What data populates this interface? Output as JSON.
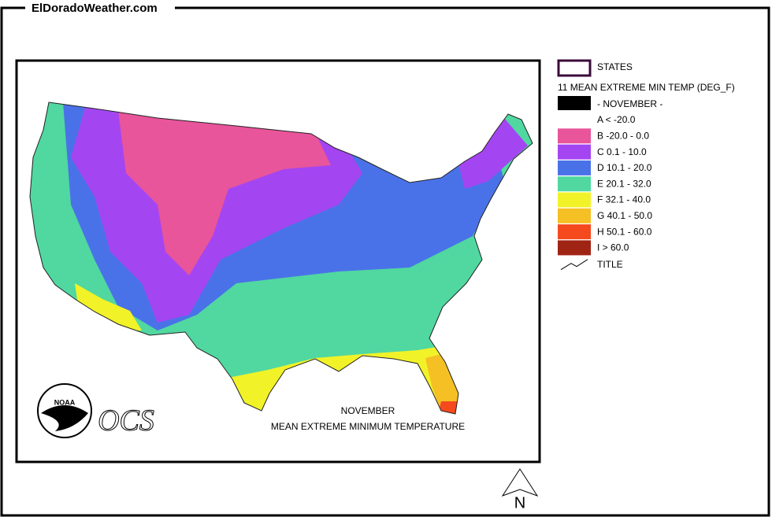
{
  "header": {
    "title": "ElDoradoWeather.com"
  },
  "legend": {
    "states": "STATES",
    "variable": "11 MEAN EXTREME MIN TEMP (DEG_F)",
    "month": "- NOVEMBER -",
    "classes": [
      {
        "label": "A < -20.0",
        "color": "#ffffff"
      },
      {
        "label": "B -20.0 - 0.0",
        "color": "#e8559a"
      },
      {
        "label": "C 0.1 - 10.0",
        "color": "#a445f2"
      },
      {
        "label": "D 10.1 - 20.0",
        "color": "#4a72e8"
      },
      {
        "label": "E 20.1 - 32.0",
        "color": "#50d8a0"
      },
      {
        "label": "F 32.1 - 40.0",
        "color": "#f2f228"
      },
      {
        "label": "G 40.1 - 50.0",
        "color": "#f5c024"
      },
      {
        "label": "H 50.1 - 60.0",
        "color": "#f54a1e"
      },
      {
        "label": "I > 60.0",
        "color": "#a02414"
      }
    ],
    "title": "TITLE"
  },
  "map": {
    "caption": [
      "NOVEMBER",
      "MEAN EXTREME MINIMUM TEMPERATURE"
    ],
    "logo_text": "NOAA",
    "agency": "OCS",
    "north": "N"
  }
}
